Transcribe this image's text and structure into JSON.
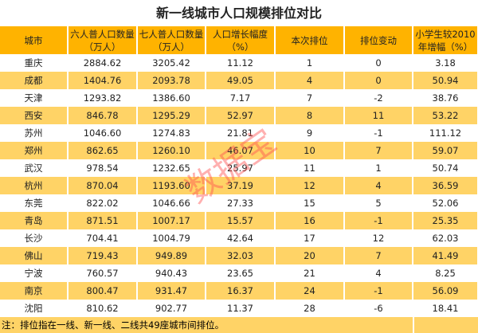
{
  "title": "新一线城市人口规模排位对比",
  "headers": [
    "城市",
    "六人普人口数量（万人）",
    "七人普人口数量（万人）",
    "人口增长幅度（%）",
    "本次排位",
    "排位变动",
    "小学生较2010年增幅（%）"
  ],
  "rows": [
    [
      "重庆",
      "2884.62",
      "3205.42",
      "11.12",
      "1",
      "0",
      "3.18"
    ],
    [
      "成都",
      "1404.76",
      "2093.78",
      "49.05",
      "4",
      "0",
      "50.94"
    ],
    [
      "天津",
      "1293.82",
      "1386.60",
      "7.17",
      "7",
      "-2",
      "38.76"
    ],
    [
      "西安",
      "846.78",
      "1295.29",
      "52.97",
      "8",
      "11",
      "53.22"
    ],
    [
      "苏州",
      "1046.60",
      "1274.83",
      "21.81",
      "9",
      "-1",
      "111.12"
    ],
    [
      "郑州",
      "862.65",
      "1260.10",
      "46.07",
      "10",
      "7",
      "59.07"
    ],
    [
      "武汉",
      "978.54",
      "1232.65",
      "25.97",
      "11",
      "1",
      "50.74"
    ],
    [
      "杭州",
      "870.04",
      "1193.60",
      "37.19",
      "12",
      "4",
      "36.59"
    ],
    [
      "东莞",
      "822.02",
      "1046.66",
      "27.33",
      "15",
      "5",
      "52.06"
    ],
    [
      "青岛",
      "871.51",
      "1007.17",
      "15.57",
      "16",
      "-1",
      "25.35"
    ],
    [
      "长沙",
      "704.41",
      "1004.79",
      "42.64",
      "17",
      "12",
      "62.03"
    ],
    [
      "佛山",
      "719.43",
      "949.89",
      "32.03",
      "20",
      "7",
      "41.49"
    ],
    [
      "宁波",
      "760.57",
      "940.43",
      "23.65",
      "21",
      "4",
      "8.25"
    ],
    [
      "南京",
      "800.47",
      "931.47",
      "16.37",
      "24",
      "-1",
      "56.09"
    ],
    [
      "沈阳",
      "810.62",
      "902.77",
      "11.37",
      "28",
      "-6",
      "18.41"
    ]
  ],
  "note": "注：排位指在一线、新一线、二线共49座城市间排位。",
  "watermark": "数据宝",
  "colors": {
    "header": "#FFB300",
    "stripe": "#FFD366",
    "watermark": "#FF5050"
  }
}
